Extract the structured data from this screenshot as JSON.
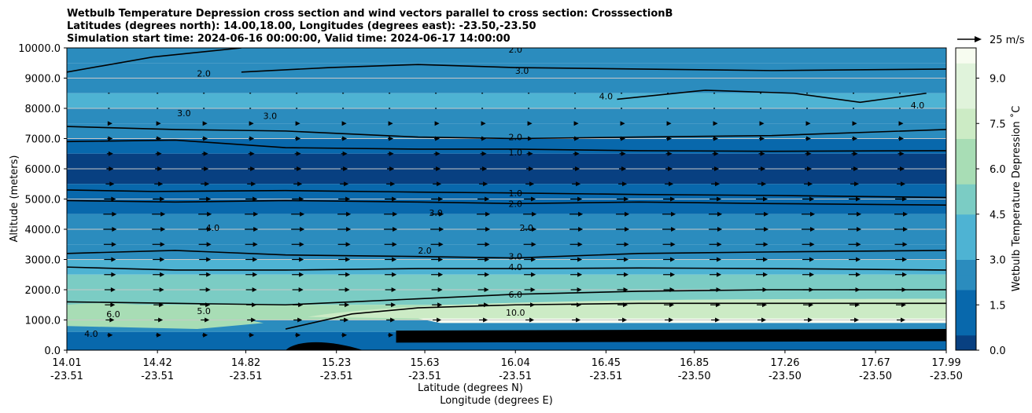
{
  "chart_data": {
    "type": "contour_cross_section",
    "title_lines": [
      "Wetbulb Temperature Depression cross section and wind vectors parallel to cross section: CrosssectionB",
      "Latitudes (degrees north): 14.00,18.00, Longitudes (degrees east): -23.50,-23.50",
      "Simulation start time: 2024-06-16 00:00:00, Valid time: 2024-06-17 14:00:00"
    ],
    "ylabel": "Altitude (meters)",
    "xlabel_lat": "Latitude (degrees N)",
    "xlabel_lon": "Longitude (degrees E)",
    "ylim": [
      0,
      10000
    ],
    "y_ticks": [
      "0.0",
      "1000.0",
      "2000.0",
      "3000.0",
      "4000.0",
      "5000.0",
      "6000.0",
      "7000.0",
      "8000.0",
      "9000.0",
      "10000.0"
    ],
    "y_tick_values": [
      0,
      1000,
      2000,
      3000,
      4000,
      5000,
      6000,
      7000,
      8000,
      9000,
      10000
    ],
    "x_range": [
      14.01,
      17.99
    ],
    "x_ticks_lat": [
      "14.01",
      "14.42",
      "14.82",
      "15.23",
      "15.63",
      "16.04",
      "16.45",
      "16.85",
      "17.26",
      "17.67",
      "17.99"
    ],
    "x_ticks_lon": [
      "-23.51",
      "-23.51",
      "-23.51",
      "-23.51",
      "-23.51",
      "-23.51",
      "-23.51",
      "-23.50",
      "-23.50",
      "-23.50",
      "-23.50"
    ],
    "x_tick_values": [
      14.01,
      14.42,
      14.82,
      15.23,
      15.63,
      16.04,
      16.45,
      16.85,
      17.26,
      17.67,
      17.99
    ],
    "colorbar_label": "Wetbulb Temperature Depression ˚C",
    "colorbar_ticks": [
      "0.0",
      "1.5",
      "3.0",
      "4.5",
      "6.0",
      "7.5",
      "9.0"
    ],
    "colorbar_range": [
      0,
      10
    ],
    "colormap_stops": [
      "#084081",
      "#0868ac",
      "#2b8cbe",
      "#4eb3d3",
      "#7bccc4",
      "#a8ddb5",
      "#ccebc5",
      "#e0f3db",
      "#f7fcf0"
    ],
    "quiver_key_label": "25 m/s",
    "contour_lines": [
      {
        "label": "1.0",
        "points": [
          [
            14.01,
            5300
          ],
          [
            14.4,
            5250
          ],
          [
            15.0,
            5280
          ],
          [
            15.6,
            5230
          ],
          [
            16.04,
            5200
          ],
          [
            16.6,
            5150
          ],
          [
            17.2,
            5120
          ],
          [
            17.99,
            5050
          ]
        ]
      },
      {
        "label": "2.0",
        "points": [
          [
            14.01,
            4950
          ],
          [
            14.5,
            4900
          ],
          [
            15.0,
            4950
          ],
          [
            15.6,
            4900
          ],
          [
            16.04,
            4850
          ],
          [
            16.6,
            4900
          ],
          [
            17.2,
            4850
          ],
          [
            17.99,
            4800
          ]
        ]
      },
      {
        "label": "3.0",
        "points": [
          [
            14.01,
            3200
          ],
          [
            14.5,
            3300
          ],
          [
            15.0,
            3150
          ],
          [
            15.6,
            3100
          ],
          [
            16.04,
            3050
          ],
          [
            16.6,
            3200
          ],
          [
            17.2,
            3250
          ],
          [
            17.99,
            3300
          ]
        ]
      },
      {
        "label": "4.0",
        "points": [
          [
            14.01,
            2750
          ],
          [
            14.5,
            2650
          ],
          [
            15.0,
            2650
          ],
          [
            15.6,
            2700
          ],
          [
            16.04,
            2700
          ],
          [
            16.6,
            2720
          ],
          [
            17.2,
            2700
          ],
          [
            17.99,
            2650
          ]
        ]
      },
      {
        "label": "6.0",
        "points": [
          [
            14.01,
            1600
          ],
          [
            14.5,
            1550
          ],
          [
            15.0,
            1500
          ],
          [
            15.3,
            1600
          ],
          [
            15.6,
            1700
          ],
          [
            16.04,
            1850
          ],
          [
            16.6,
            1950
          ],
          [
            17.2,
            2000
          ],
          [
            17.99,
            2000
          ]
        ]
      },
      {
        "label": "10.0",
        "points": [
          [
            15.0,
            700
          ],
          [
            15.3,
            1200
          ],
          [
            15.6,
            1400
          ],
          [
            16.04,
            1500
          ],
          [
            16.6,
            1550
          ],
          [
            17.2,
            1550
          ],
          [
            17.99,
            1550
          ]
        ]
      },
      {
        "label": "1.0",
        "points": [
          [
            14.01,
            6900
          ],
          [
            14.5,
            6950
          ],
          [
            15.0,
            6700
          ],
          [
            15.6,
            6650
          ],
          [
            16.04,
            6650
          ],
          [
            16.6,
            6600
          ],
          [
            17.2,
            6580
          ],
          [
            17.99,
            6600
          ]
        ]
      },
      {
        "label": "2.0",
        "points": [
          [
            14.01,
            7400
          ],
          [
            14.5,
            7300
          ],
          [
            15.0,
            7250
          ],
          [
            15.6,
            7050
          ],
          [
            16.04,
            7000
          ],
          [
            16.6,
            7050
          ],
          [
            17.2,
            7100
          ],
          [
            17.99,
            7300
          ]
        ]
      },
      {
        "label": "3.0",
        "points": [
          [
            14.8,
            9200
          ],
          [
            15.2,
            9350
          ],
          [
            15.6,
            9450
          ],
          [
            16.04,
            9350
          ],
          [
            16.6,
            9300
          ],
          [
            17.2,
            9250
          ],
          [
            17.99,
            9300
          ]
        ]
      },
      {
        "label": "2.0",
        "points": [
          [
            14.01,
            9200
          ],
          [
            14.4,
            9700
          ],
          [
            14.8,
            10000
          ]
        ]
      },
      {
        "label": "4.0",
        "points": [
          [
            16.5,
            8300
          ],
          [
            16.9,
            8600
          ],
          [
            17.3,
            8500
          ],
          [
            17.6,
            8200
          ],
          [
            17.9,
            8500
          ]
        ]
      }
    ],
    "contour_label_positions": [
      {
        "text": "2.0",
        "lat": 16.04,
        "alt": 9950
      },
      {
        "text": "3.0",
        "lat": 16.07,
        "alt": 9250
      },
      {
        "text": "4.0",
        "lat": 16.45,
        "alt": 8400
      },
      {
        "text": "4.0",
        "lat": 17.86,
        "alt": 8100
      },
      {
        "text": "2.0",
        "lat": 14.63,
        "alt": 9150
      },
      {
        "text": "3.0",
        "lat": 14.54,
        "alt": 7850
      },
      {
        "text": "3.0",
        "lat": 14.93,
        "alt": 7750
      },
      {
        "text": "2.0",
        "lat": 16.04,
        "alt": 7050
      },
      {
        "text": "1.0",
        "lat": 16.04,
        "alt": 6550
      },
      {
        "text": "1.0",
        "lat": 16.04,
        "alt": 5200
      },
      {
        "text": "2.0",
        "lat": 16.04,
        "alt": 4850
      },
      {
        "text": "3.0",
        "lat": 16.04,
        "alt": 3100
      },
      {
        "text": "4.0",
        "lat": 16.04,
        "alt": 2750
      },
      {
        "text": "6.0",
        "lat": 16.04,
        "alt": 1850
      },
      {
        "text": "10.0",
        "lat": 16.04,
        "alt": 1250
      },
      {
        "text": "5.0",
        "lat": 14.63,
        "alt": 1300
      },
      {
        "text": "6.0",
        "lat": 14.22,
        "alt": 1200
      },
      {
        "text": "4.0",
        "lat": 14.12,
        "alt": 550
      },
      {
        "text": "4.0",
        "lat": 14.67,
        "alt": 4050
      },
      {
        "text": "2.0",
        "lat": 16.09,
        "alt": 4050
      },
      {
        "text": "3.0",
        "lat": 15.68,
        "alt": 4550
      },
      {
        "text": "2.0",
        "lat": 15.63,
        "alt": 3300
      }
    ],
    "wind_vectors": {
      "rows": [
        {
          "alt": 8500,
          "len": 1
        },
        {
          "alt": 8000,
          "len": 1
        },
        {
          "alt": 7500,
          "len": 1.5
        },
        {
          "alt": 7000,
          "len": 2
        },
        {
          "alt": 6500,
          "len": 2.5
        },
        {
          "alt": 6000,
          "len": 3
        },
        {
          "alt": 5500,
          "len": 4
        },
        {
          "alt": 5000,
          "len": 6
        },
        {
          "alt": 4500,
          "len": 7
        },
        {
          "alt": 4000,
          "len": 7
        },
        {
          "alt": 3500,
          "len": 6.5
        },
        {
          "alt": 3000,
          "len": 6
        },
        {
          "alt": 2500,
          "len": 6
        },
        {
          "alt": 2000,
          "len": 5.5
        },
        {
          "alt": 1500,
          "len": 5
        },
        {
          "alt": 1000,
          "len": 4
        },
        {
          "alt": 500,
          "len": 2
        }
      ],
      "columns": [
        14.2,
        14.42,
        14.63,
        14.84,
        15.05,
        15.26,
        15.47,
        15.68,
        15.89,
        16.1,
        16.31,
        16.52,
        16.73,
        16.94,
        17.15,
        17.36,
        17.57,
        17.78
      ]
    }
  }
}
